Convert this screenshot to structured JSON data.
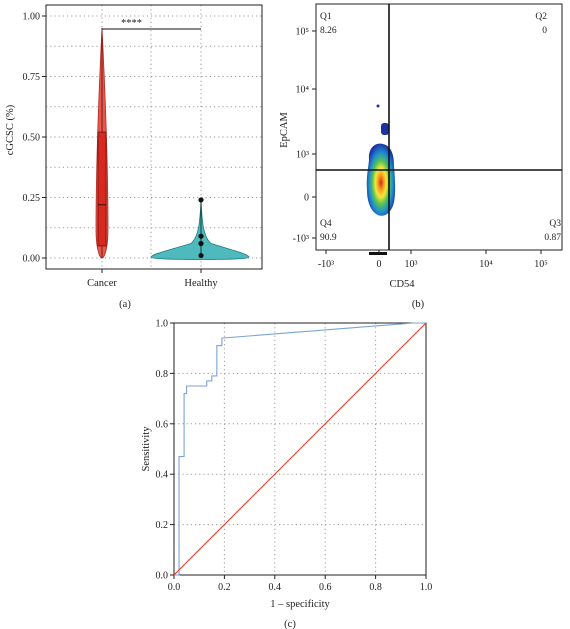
{
  "chart_data": [
    {
      "type": "violin",
      "panel_label": "(a)",
      "ylabel": "cGCSC (%)",
      "ylim": [
        0,
        1
      ],
      "y_ticks": [
        "0.00",
        "0.25",
        "0.50",
        "0.75",
        "1.00"
      ],
      "y_tick_values": [
        0,
        0.25,
        0.5,
        0.75,
        1.0
      ],
      "categories": [
        "Cancer",
        "Healthy"
      ],
      "significance": "****",
      "grid": true,
      "colors": {
        "Cancer": "#e23b2f",
        "Healthy": "#3bb3b6"
      },
      "series": [
        {
          "name": "Cancer",
          "min": 0.0,
          "q1": 0.05,
          "median": 0.22,
          "q3": 0.52,
          "max": 0.95
        },
        {
          "name": "Healthy",
          "min": 0.0,
          "q1": 0.01,
          "median": 0.02,
          "q3": 0.06,
          "max": 0.24,
          "points": [
            0.24,
            0.09,
            0.06,
            0.01
          ]
        }
      ]
    },
    {
      "type": "scatter",
      "subtype": "flow-cytometry-density",
      "panel_label": "(b)",
      "xlabel": "CD54",
      "ylabel": "EpCAM",
      "x_ticks": [
        "-10³",
        "0",
        "10³",
        "10⁴",
        "10⁵"
      ],
      "y_ticks": [
        "-10³",
        "0",
        "10³",
        "10⁴",
        "10⁵"
      ],
      "quadrants": [
        {
          "name": "Q1",
          "value": "8.26"
        },
        {
          "name": "Q2",
          "value": "0"
        },
        {
          "name": "Q3",
          "value": "0.87"
        },
        {
          "name": "Q4",
          "value": "90.9"
        }
      ]
    },
    {
      "type": "line",
      "subtype": "roc",
      "panel_label": "(c)",
      "xlabel": "1 – specificity",
      "ylabel": "Sensitivity",
      "xlim": [
        0,
        1
      ],
      "ylim": [
        0,
        1
      ],
      "x_ticks": [
        "0.0",
        "0.2",
        "0.4",
        "0.6",
        "0.8",
        "1.0"
      ],
      "y_ticks": [
        "0.0",
        "0.2",
        "0.4",
        "0.6",
        "0.8",
        "1.0"
      ],
      "tick_values": [
        0,
        0.2,
        0.4,
        0.6,
        0.8,
        1.0
      ],
      "grid": true,
      "series": [
        {
          "color": "#7ba3d6",
          "x": [
            0,
            0.02,
            0.02,
            0.04,
            0.04,
            0.05,
            0.05,
            0.13,
            0.13,
            0.15,
            0.15,
            0.17,
            0.17,
            0.19,
            0.19,
            0.95,
            1.0
          ],
          "y": [
            0,
            0,
            0.47,
            0.47,
            0.72,
            0.72,
            0.75,
            0.75,
            0.77,
            0.77,
            0.79,
            0.79,
            0.91,
            0.91,
            0.94,
            1.0,
            1.0
          ]
        },
        {
          "color": "#e03a2f",
          "x": [
            0,
            1
          ],
          "y": [
            0,
            1
          ]
        }
      ]
    }
  ]
}
